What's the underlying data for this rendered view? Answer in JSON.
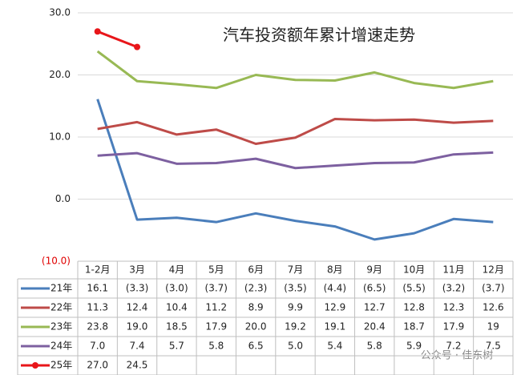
{
  "chart_data": {
    "type": "line",
    "title": "汽车投资额年累计增速走势",
    "categories": [
      "1-2月",
      "3月",
      "4月",
      "5月",
      "6月",
      "7月",
      "8月",
      "9月",
      "10月",
      "11月",
      "12月"
    ],
    "ylim": [
      -10,
      30
    ],
    "yticks": [
      {
        "value": -10,
        "label": "(10.0)"
      },
      {
        "value": 0,
        "label": "0.0"
      },
      {
        "value": 10,
        "label": "10.0"
      },
      {
        "value": 20,
        "label": "20.0"
      },
      {
        "value": 30,
        "label": "30.0"
      }
    ],
    "grid": true,
    "series": [
      {
        "name": "21年",
        "color": "#4a7ebb",
        "markers": false,
        "values": [
          16.1,
          -3.3,
          -3.0,
          -3.7,
          -2.3,
          -3.5,
          -4.4,
          -6.5,
          -5.5,
          -3.2,
          -3.7
        ],
        "value_labels": [
          "16.1",
          "(3.3)",
          "(3.0)",
          "(3.7)",
          "(2.3)",
          "(3.5)",
          "(4.4)",
          "(6.5)",
          "(5.5)",
          "(3.2)",
          "(3.7)"
        ]
      },
      {
        "name": "22年",
        "color": "#be4b48",
        "markers": false,
        "values": [
          11.3,
          12.4,
          10.4,
          11.2,
          8.9,
          9.9,
          12.9,
          12.7,
          12.8,
          12.3,
          12.6
        ],
        "value_labels": [
          "11.3",
          "12.4",
          "10.4",
          "11.2",
          "8.9",
          "9.9",
          "12.9",
          "12.7",
          "12.8",
          "12.3",
          "12.6"
        ]
      },
      {
        "name": "23年",
        "color": "#98b954",
        "markers": false,
        "values": [
          23.8,
          19.0,
          18.5,
          17.9,
          20.0,
          19.2,
          19.1,
          20.4,
          18.7,
          17.9,
          19
        ],
        "value_labels": [
          "23.8",
          "19.0",
          "18.5",
          "17.9",
          "20.0",
          "19.2",
          "19.1",
          "20.4",
          "18.7",
          "17.9",
          "19"
        ]
      },
      {
        "name": "24年",
        "color": "#7d60a0",
        "markers": false,
        "values": [
          7.0,
          7.4,
          5.7,
          5.8,
          6.5,
          5.0,
          5.4,
          5.8,
          5.9,
          7.2,
          7.5
        ],
        "value_labels": [
          "7.0",
          "7.4",
          "5.7",
          "5.8",
          "6.5",
          "5.0",
          "5.4",
          "5.8",
          "5.9",
          "7.2",
          "7.5"
        ]
      },
      {
        "name": "25年",
        "color": "#e8161a",
        "markers": true,
        "values": [
          27.0,
          24.5,
          null,
          null,
          null,
          null,
          null,
          null,
          null,
          null,
          null
        ],
        "value_labels": [
          "27.0",
          "24.5",
          null,
          null,
          null,
          null,
          null,
          null,
          null,
          null,
          null
        ]
      }
    ],
    "watermark": "公众号 · 佳东树"
  }
}
